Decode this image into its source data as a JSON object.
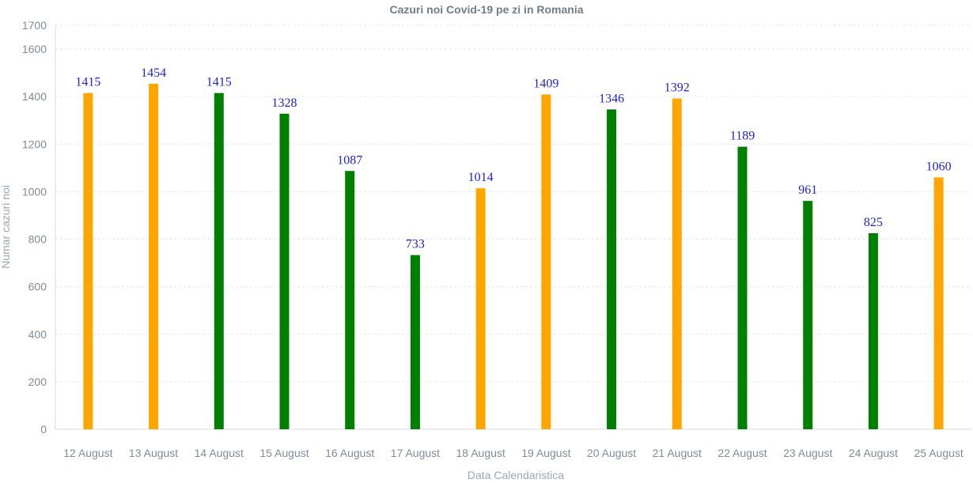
{
  "chart_data": {
    "type": "bar",
    "title": "Cazuri noi Covid-19 pe zi in Romania",
    "xlabel": "Data Calendaristica",
    "ylabel": "Numar cazuri noi",
    "categories": [
      "12 August",
      "13 August",
      "14 August",
      "15 August",
      "16 August",
      "17 August",
      "18 August",
      "19 August",
      "20 August",
      "21 August",
      "22 August",
      "23 August",
      "24 August",
      "25 August"
    ],
    "values": [
      1415,
      1454,
      1415,
      1328,
      1087,
      733,
      1014,
      1409,
      1346,
      1392,
      1189,
      961,
      825,
      1060
    ],
    "bar_colors": [
      "#ffa500",
      "#ffa500",
      "#008000",
      "#008000",
      "#008000",
      "#008000",
      "#ffa500",
      "#ffa500",
      "#008000",
      "#ffa500",
      "#008000",
      "#008000",
      "#008000",
      "#ffa500"
    ],
    "ylim": [
      0,
      1700
    ],
    "yticks": [
      0,
      200,
      400,
      600,
      800,
      1000,
      1200,
      1400,
      1600,
      1700
    ],
    "grid": true,
    "data_labels": true
  },
  "colors": {
    "higher": "#ffa500",
    "lower": "#008000",
    "data_label": "#2222cc"
  }
}
